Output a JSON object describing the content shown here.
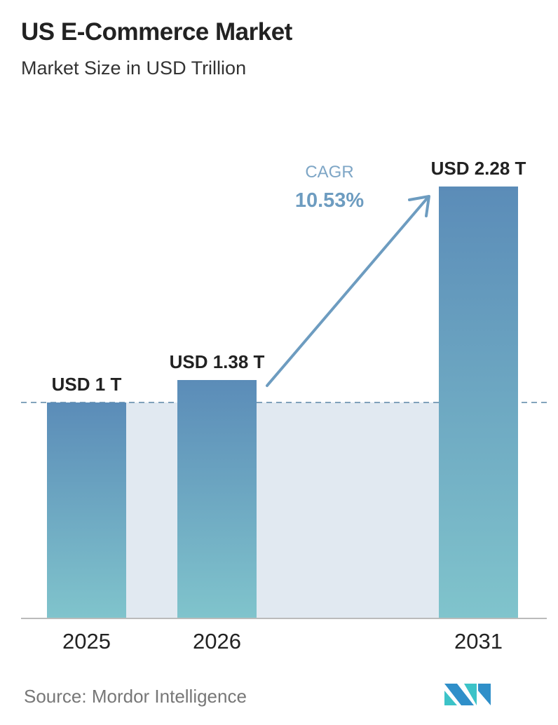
{
  "chart_data": {
    "type": "bar",
    "title": "US E-Commerce Market",
    "subtitle": "Market Size in USD Trillion",
    "categories": [
      "2025",
      "2026",
      "2031"
    ],
    "values": [
      1,
      1.38,
      2.28
    ],
    "data_labels": [
      "USD 1 T",
      "USD 1.38 T",
      "USD 2.28 T"
    ],
    "cagr_label": "CAGR",
    "cagr_value": "10.53%",
    "grid": false,
    "colors": {
      "bar_top": "#5b8cb8",
      "bar_bottom": "#80c4cc",
      "band": "#e1e9f1",
      "accent": "#6d9cc0"
    }
  },
  "source": "Source:  Mordor Intelligence"
}
